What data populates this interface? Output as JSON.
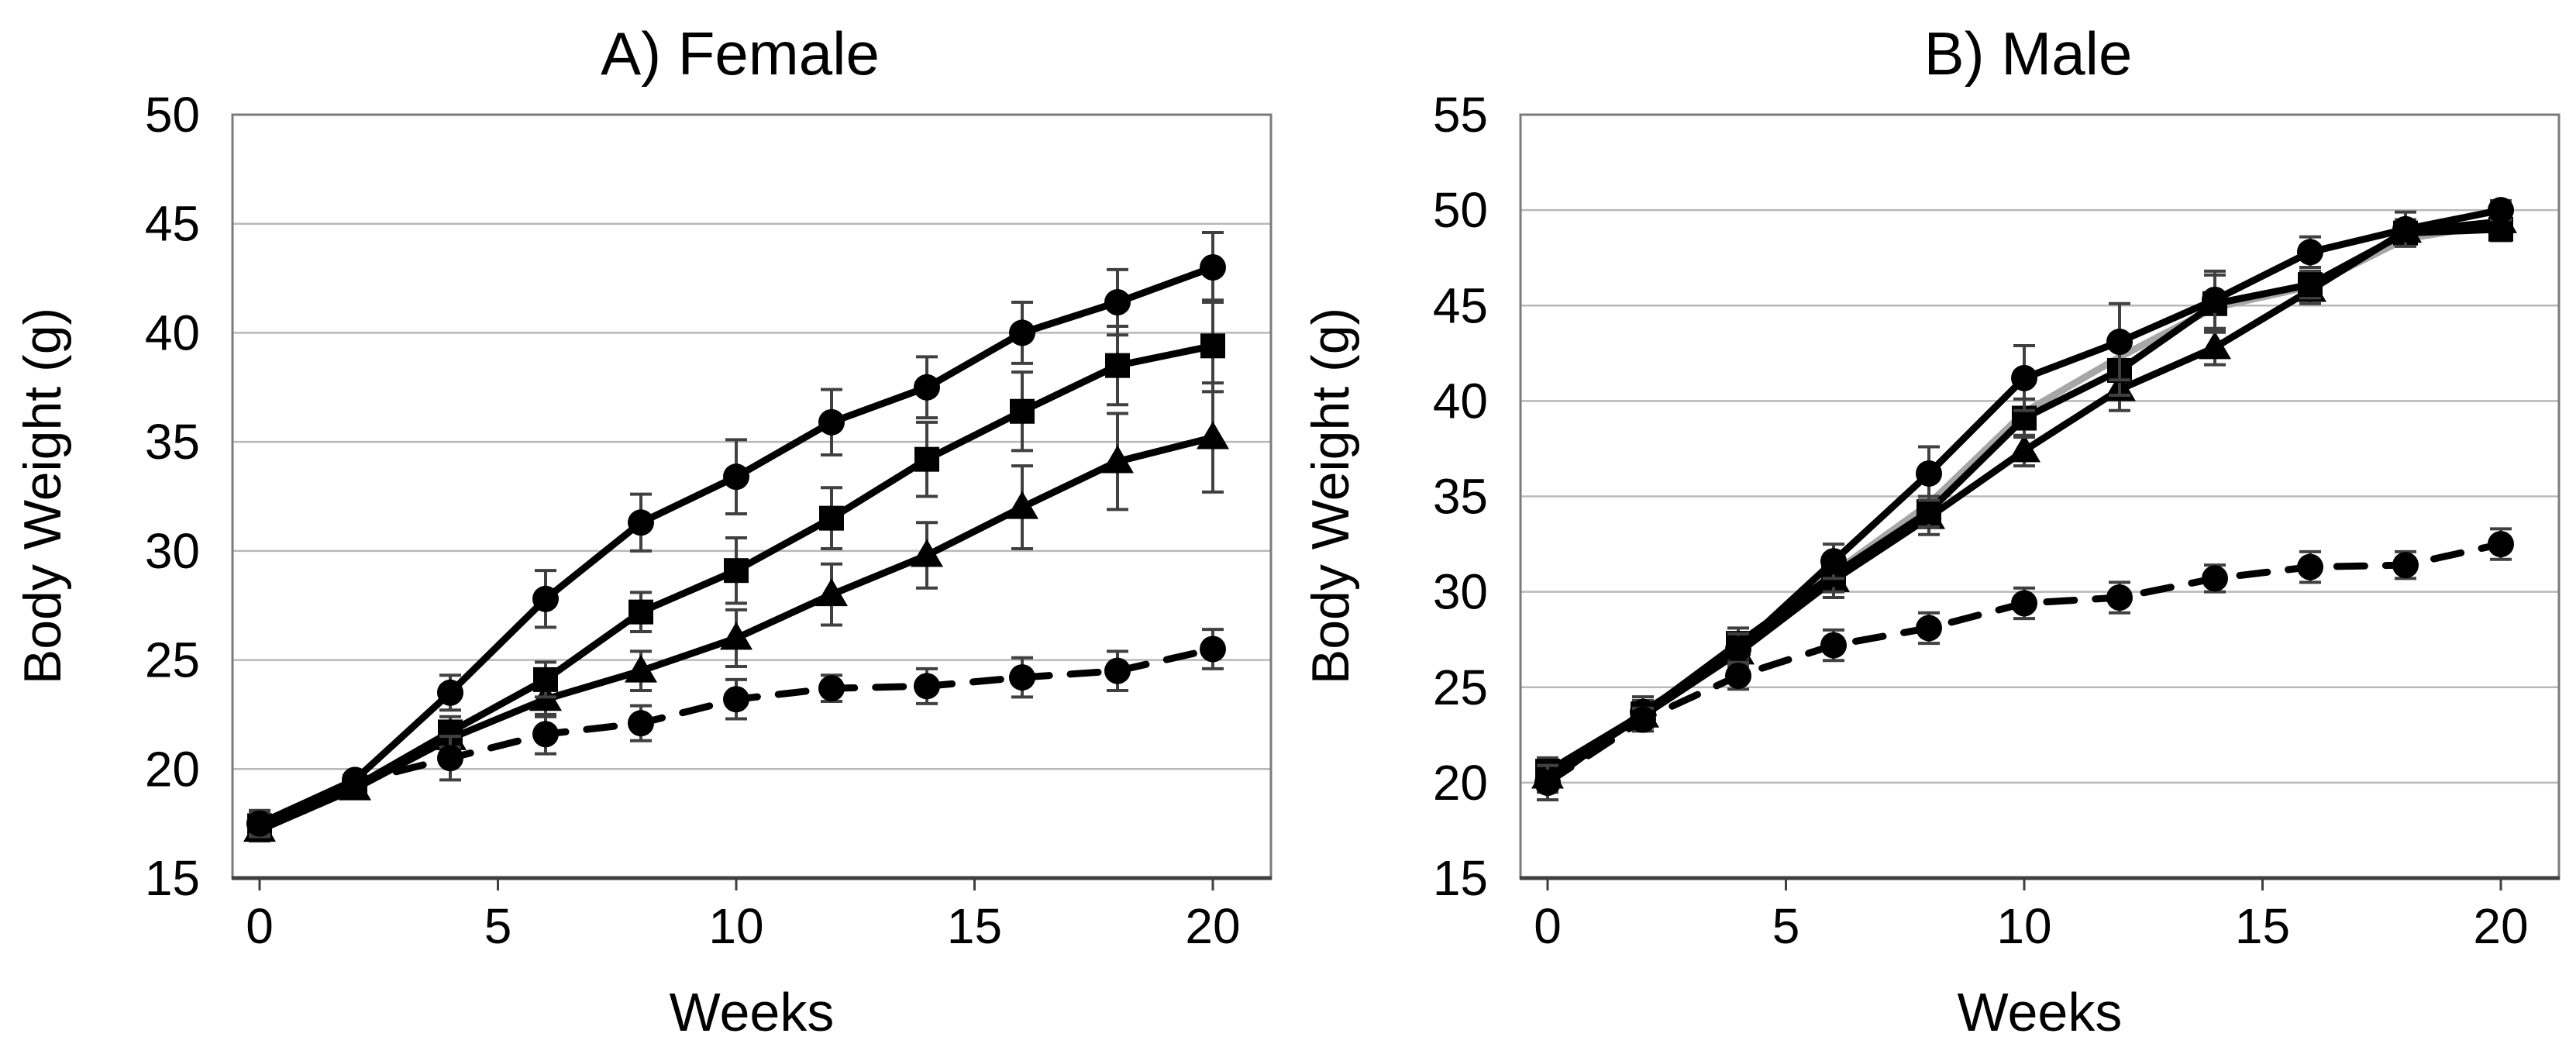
{
  "figure": {
    "background": "#ffffff",
    "line_color": "#000000",
    "gray_series_color": "#a6a6a6",
    "grid_color": "#b8b8b8"
  },
  "chart_data": [
    {
      "id": "female",
      "type": "line",
      "title": "A) Female",
      "xlabel": "Weeks",
      "ylabel": "Body Weight (g)",
      "x": [
        0,
        2,
        4,
        6,
        8,
        10,
        12,
        14,
        16,
        18,
        20
      ],
      "xtick_labels": [
        0,
        5,
        10,
        15,
        20
      ],
      "ylim": [
        15,
        50
      ],
      "ytick_step": 5,
      "grid": true,
      "legend": "none",
      "series": [
        {
          "name": "solid-triangle",
          "marker": "triangle",
          "line_style": "solid",
          "color": "#000000",
          "values": [
            17.2,
            19.1,
            21.4,
            23.2,
            24.5,
            26.0,
            28.0,
            29.8,
            32.0,
            34.1,
            35.2
          ],
          "err": [
            0.5,
            0.3,
            0.6,
            0.8,
            0.9,
            1.3,
            1.4,
            1.5,
            1.9,
            2.2,
            2.5
          ]
        },
        {
          "name": "solid-square",
          "marker": "square",
          "line_style": "solid",
          "color": "#000000",
          "values": [
            17.4,
            19.2,
            21.7,
            24.1,
            27.2,
            29.1,
            31.5,
            34.2,
            36.4,
            38.5,
            39.4
          ],
          "err": [
            0.5,
            0.4,
            0.7,
            0.8,
            0.9,
            1.5,
            1.4,
            1.7,
            1.8,
            1.8,
            2.1
          ]
        },
        {
          "name": "solid-circle",
          "marker": "circle",
          "line_style": "solid",
          "color": "#000000",
          "values": [
            17.5,
            19.5,
            23.5,
            27.8,
            31.3,
            33.4,
            35.9,
            37.5,
            40.0,
            41.4,
            43.0
          ],
          "err": [
            0.5,
            0.3,
            0.8,
            1.3,
            1.3,
            1.7,
            1.5,
            1.4,
            1.4,
            1.5,
            1.6
          ]
        },
        {
          "name": "dashed-circle",
          "marker": "circle",
          "line_style": "dashed",
          "color": "#000000",
          "values": [
            17.5,
            19.4,
            20.5,
            21.6,
            22.1,
            23.2,
            23.7,
            23.8,
            24.2,
            24.5,
            25.5
          ],
          "err": [
            0.6,
            0.3,
            1.0,
            0.9,
            0.8,
            0.9,
            0.6,
            0.8,
            0.9,
            0.9,
            0.9
          ]
        }
      ]
    },
    {
      "id": "male",
      "type": "line",
      "title": "B) Male",
      "xlabel": "Weeks",
      "ylabel": "Body Weight (g)",
      "x": [
        0,
        2,
        4,
        6,
        8,
        10,
        12,
        14,
        16,
        18,
        20
      ],
      "xtick_labels": [
        0,
        5,
        10,
        15,
        20
      ],
      "ylim": [
        15,
        55
      ],
      "ytick_step": 5,
      "grid": true,
      "legend": "none",
      "series": [
        {
          "name": "solid-gray-line",
          "marker": "none",
          "line_style": "solid",
          "color": "#a6a6a6",
          "values": [
            20.4,
            23.6,
            27.1,
            31.0,
            34.6,
            39.4,
            42.3,
            44.9,
            46.0,
            48.5,
            49.3
          ],
          "err": null
        },
        {
          "name": "solid-triangle",
          "marker": "triangle",
          "line_style": "solid",
          "color": "#000000",
          "values": [
            20.3,
            23.5,
            26.8,
            30.6,
            33.9,
            37.4,
            40.6,
            42.8,
            45.8,
            48.9,
            49.4
          ],
          "err": [
            0.8,
            0.5,
            0.7,
            0.9,
            0.9,
            0.8,
            1.1,
            0.9,
            0.7,
            0.6,
            0.5
          ]
        },
        {
          "name": "solid-square",
          "marker": "square",
          "line_style": "solid",
          "color": "#000000",
          "values": [
            20.6,
            23.6,
            27.3,
            30.9,
            34.2,
            39.1,
            41.6,
            45.1,
            46.1,
            48.8,
            49.0
          ],
          "err": [
            0.7,
            0.7,
            0.8,
            0.9,
            0.8,
            1.0,
            1.3,
            1.5,
            0.7,
            0.6,
            0.6
          ]
        },
        {
          "name": "solid-circle",
          "marker": "circle",
          "line_style": "solid",
          "color": "#000000",
          "values": [
            20.0,
            23.7,
            27.0,
            31.6,
            36.2,
            41.2,
            43.1,
            45.3,
            47.8,
            49.0,
            50.0
          ],
          "err": [
            0.9,
            0.8,
            0.8,
            0.9,
            1.4,
            1.7,
            2.0,
            1.5,
            0.8,
            0.9,
            0.5
          ]
        },
        {
          "name": "dashed-circle",
          "marker": "circle",
          "line_style": "dashed",
          "color": "#000000",
          "values": [
            20.0,
            23.3,
            25.6,
            27.2,
            28.1,
            29.4,
            29.7,
            30.7,
            31.3,
            31.4,
            32.5
          ],
          "err": [
            0.9,
            0.6,
            0.7,
            0.8,
            0.8,
            0.8,
            0.8,
            0.7,
            0.8,
            0.7,
            0.8
          ]
        }
      ]
    }
  ]
}
